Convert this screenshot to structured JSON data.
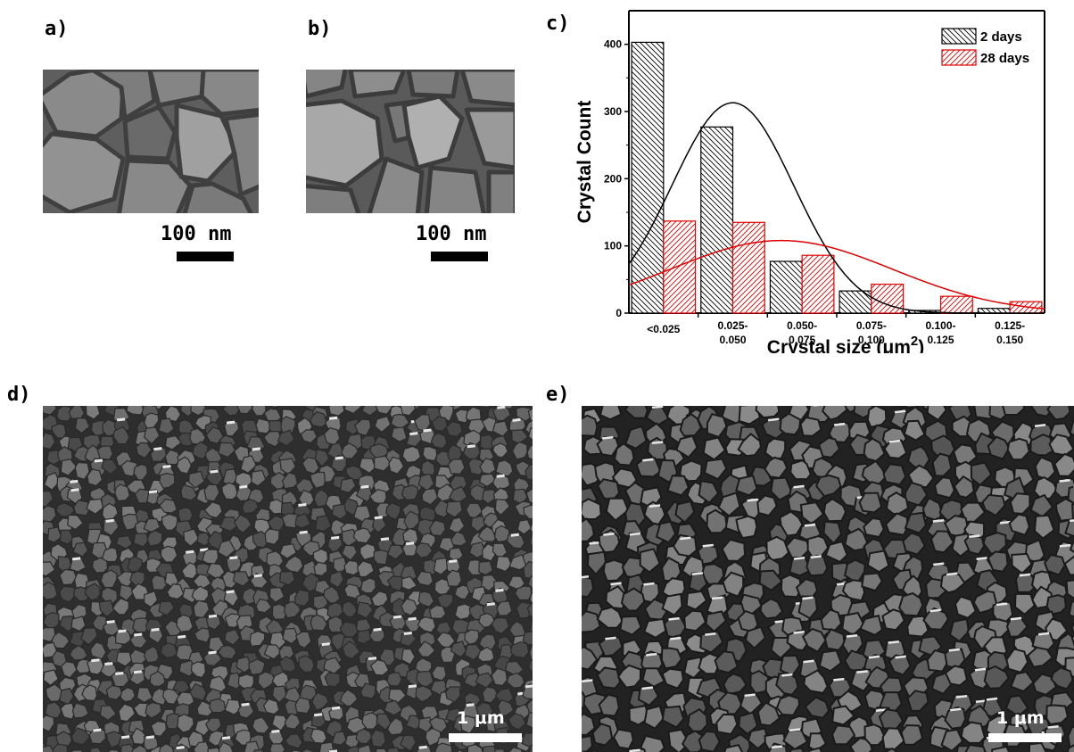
{
  "panels": {
    "a": {
      "label": "a)",
      "scale": "100 nm"
    },
    "b": {
      "label": "b)",
      "scale": "100 nm"
    },
    "c": {
      "label": "c)"
    },
    "d": {
      "label": "d)",
      "scale": "1 μm"
    },
    "e": {
      "label": "e)",
      "scale": "1 μm"
    }
  },
  "chart_data": {
    "type": "bar",
    "ylabel": "Crystal Count",
    "xlabel_main": "Crystal size (μm",
    "xlabel_sup": "2",
    "xlabel_end": ")",
    "categories": [
      [
        "<0.025"
      ],
      [
        "0.025-",
        "0.050"
      ],
      [
        "0.050-",
        "0.075"
      ],
      [
        "0.075-",
        "0.100"
      ],
      [
        "0.100-",
        "0.125"
      ],
      [
        "0.125-",
        "0.150"
      ]
    ],
    "series": [
      {
        "name": "2 days",
        "values": [
          403,
          277,
          77,
          33,
          4,
          7
        ],
        "color": "#000000",
        "hatch": "backslash"
      },
      {
        "name": "28 days",
        "values": [
          137,
          135,
          86,
          43,
          25,
          17
        ],
        "color": "#e00000",
        "hatch": "forwardslash"
      }
    ],
    "fits": [
      {
        "series": "2 days",
        "peak_x": 0.0375,
        "peak_y": 313,
        "sigma": 0.022,
        "color": "#000000"
      },
      {
        "series": "28 days",
        "peak_x": 0.055,
        "peak_y": 108,
        "sigma": 0.04,
        "color": "#e00000"
      }
    ],
    "yticks": [
      0,
      100,
      200,
      300,
      400
    ],
    "ylim": [
      0,
      450
    ],
    "xlim": [
      0,
      0.15
    ],
    "legend_position": "top-right",
    "grid": false
  }
}
